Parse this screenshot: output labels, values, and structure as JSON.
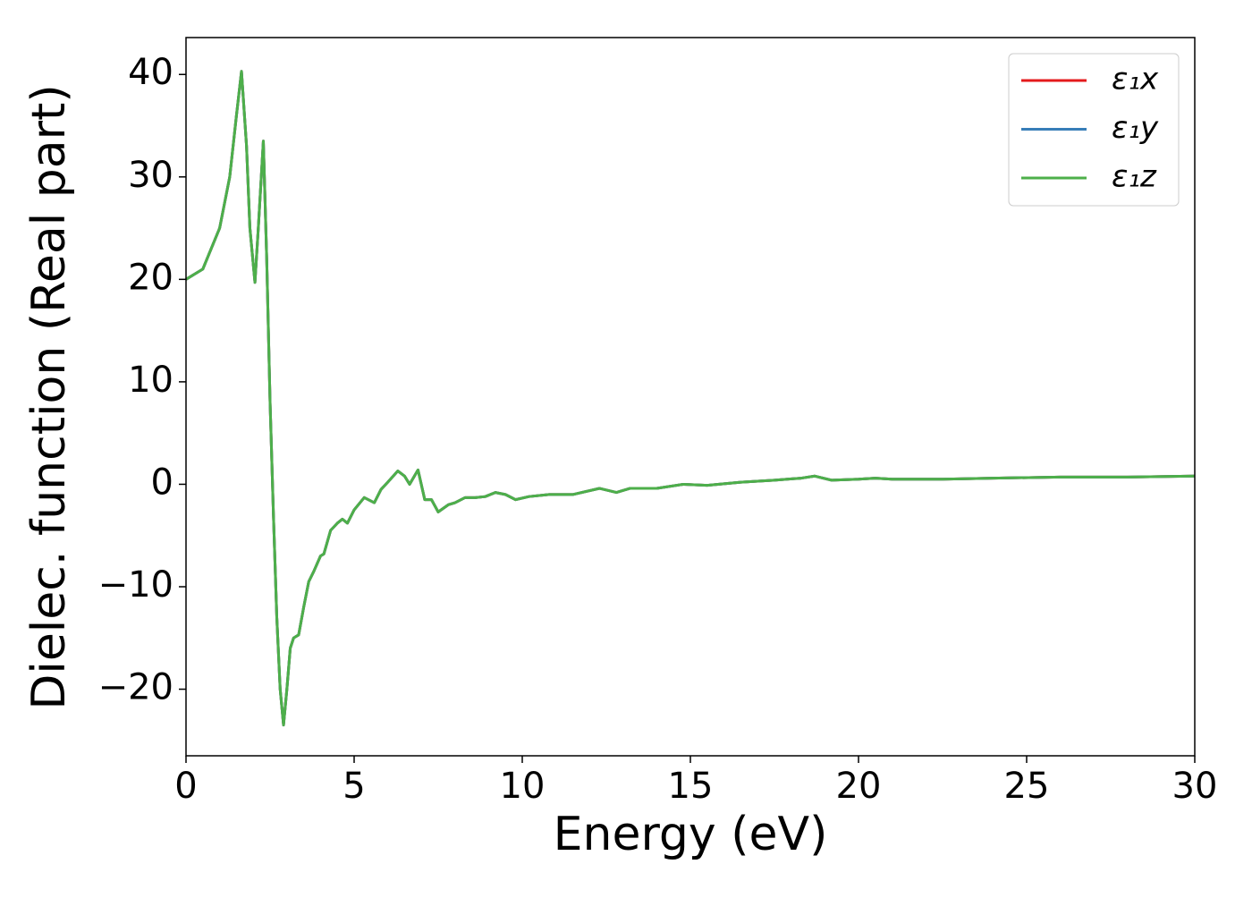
{
  "chart_data": {
    "type": "line",
    "xlabel": "Energy (eV)",
    "ylabel": "Dielec. function (Real part)",
    "x": [
      0,
      0.5,
      1.0,
      1.3,
      1.5,
      1.65,
      1.8,
      1.9,
      2.05,
      2.15,
      2.3,
      2.4,
      2.5,
      2.6,
      2.7,
      2.8,
      2.9,
      3.0,
      3.1,
      3.2,
      3.35,
      3.5,
      3.65,
      3.8,
      4.0,
      4.1,
      4.3,
      4.5,
      4.65,
      4.8,
      5.0,
      5.3,
      5.6,
      5.8,
      6.0,
      6.3,
      6.5,
      6.65,
      6.9,
      7.1,
      7.3,
      7.5,
      7.8,
      8.0,
      8.3,
      8.6,
      8.9,
      9.2,
      9.5,
      9.8,
      10.2,
      10.8,
      11.5,
      12.3,
      12.8,
      13.2,
      14.0,
      14.8,
      15.5,
      16.5,
      17.5,
      18.3,
      18.7,
      19.2,
      20.0,
      20.5,
      21.0,
      22.5,
      24.0,
      26.0,
      28.0,
      30.0
    ],
    "series": [
      {
        "name": "ε₁x",
        "color": "#e41a1c",
        "values": [
          20,
          21,
          25,
          30,
          36,
          40.3,
          33,
          25,
          19.7,
          25,
          33.5,
          22,
          8,
          -3,
          -13,
          -20,
          -23.5,
          -20,
          -16,
          -15,
          -14.7,
          -12,
          -9.5,
          -8.5,
          -7,
          -6.8,
          -4.5,
          -3.8,
          -3.4,
          -3.8,
          -2.5,
          -1.3,
          -1.8,
          -0.5,
          0.2,
          1.3,
          0.8,
          0,
          1.4,
          -1.5,
          -1.5,
          -2.7,
          -2,
          -1.8,
          -1.3,
          -1.3,
          -1.2,
          -0.8,
          -1.0,
          -1.5,
          -1.2,
          -1.0,
          -1.0,
          -0.4,
          -0.8,
          -0.4,
          -0.4,
          0.0,
          -0.1,
          0.2,
          0.4,
          0.6,
          0.8,
          0.4,
          0.5,
          0.6,
          0.5,
          0.5,
          0.6,
          0.7,
          0.7,
          0.8
        ]
      },
      {
        "name": "ε₁y",
        "color": "#377eb8",
        "values": [
          20,
          21,
          25,
          30,
          36,
          40.3,
          33,
          25,
          19.7,
          25,
          33.5,
          22,
          8,
          -3,
          -13,
          -20,
          -23.5,
          -20,
          -16,
          -15,
          -14.7,
          -12,
          -9.5,
          -8.5,
          -7,
          -6.8,
          -4.5,
          -3.8,
          -3.4,
          -3.8,
          -2.5,
          -1.3,
          -1.8,
          -0.5,
          0.2,
          1.3,
          0.8,
          0,
          1.4,
          -1.5,
          -1.5,
          -2.7,
          -2,
          -1.8,
          -1.3,
          -1.3,
          -1.2,
          -0.8,
          -1.0,
          -1.5,
          -1.2,
          -1.0,
          -1.0,
          -0.4,
          -0.8,
          -0.4,
          -0.4,
          0.0,
          -0.1,
          0.2,
          0.4,
          0.6,
          0.8,
          0.4,
          0.5,
          0.6,
          0.5,
          0.5,
          0.6,
          0.7,
          0.7,
          0.8
        ]
      },
      {
        "name": "ε₁z",
        "color": "#4daf4a",
        "values": [
          20,
          21,
          25,
          30,
          36,
          40.3,
          33,
          25,
          19.7,
          25,
          33.5,
          22,
          8,
          -3,
          -13,
          -20,
          -23.5,
          -20,
          -16,
          -15,
          -14.7,
          -12,
          -9.5,
          -8.5,
          -7,
          -6.8,
          -4.5,
          -3.8,
          -3.4,
          -3.8,
          -2.5,
          -1.3,
          -1.8,
          -0.5,
          0.2,
          1.3,
          0.8,
          0,
          1.4,
          -1.5,
          -1.5,
          -2.7,
          -2,
          -1.8,
          -1.3,
          -1.3,
          -1.2,
          -0.8,
          -1.0,
          -1.5,
          -1.2,
          -1.0,
          -1.0,
          -0.4,
          -0.8,
          -0.4,
          -0.4,
          0.0,
          -0.1,
          0.2,
          0.4,
          0.6,
          0.8,
          0.4,
          0.5,
          0.6,
          0.5,
          0.5,
          0.6,
          0.7,
          0.7,
          0.8
        ]
      }
    ],
    "xlim": [
      0,
      30
    ],
    "xticks": [
      0,
      5,
      10,
      15,
      20,
      25,
      30
    ],
    "ylim": [
      -26.5,
      43.6
    ],
    "yticks": [
      {
        "value": -20,
        "label": "−20"
      },
      {
        "value": -10,
        "label": "−10"
      },
      0,
      10,
      20,
      30,
      40
    ],
    "grid": false,
    "legend": "upper right"
  }
}
